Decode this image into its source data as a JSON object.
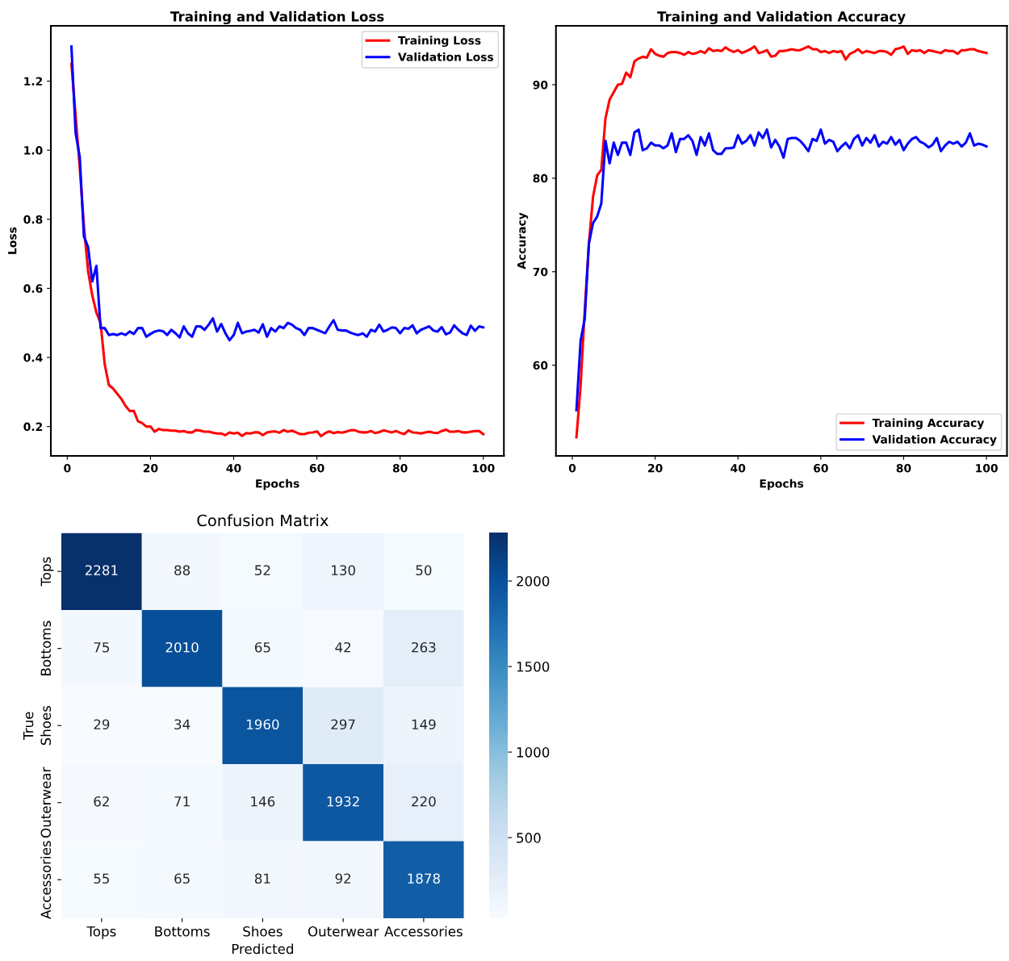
{
  "chart_data": [
    {
      "type": "line",
      "title": "Training and Validation Loss",
      "xlabel": "Epochs",
      "ylabel": "Loss",
      "xlim": [
        -3.95,
        104.95
      ],
      "ylim": [
        0.115,
        1.36
      ],
      "xticks": [
        0,
        20,
        40,
        60,
        80,
        100
      ],
      "yticks": [
        0.2,
        0.4,
        0.6,
        0.8,
        {
          "value": 1,
          "label": "1.0"
        },
        1.2
      ],
      "legend": "top right",
      "grid": false,
      "marker": "none",
      "line_style": "solid",
      "x": [
        1,
        2,
        3,
        4,
        5,
        6,
        7,
        8,
        9,
        10,
        11,
        12,
        13,
        14,
        15,
        16,
        17,
        18,
        19,
        20,
        21,
        22,
        23,
        24,
        25,
        26,
        27,
        28,
        29,
        30,
        31,
        32,
        33,
        34,
        35,
        36,
        37,
        38,
        39,
        40,
        41,
        42,
        43,
        44,
        45,
        46,
        47,
        48,
        49,
        50,
        51,
        52,
        53,
        54,
        55,
        56,
        57,
        58,
        59,
        60,
        61,
        62,
        63,
        64,
        65,
        66,
        67,
        68,
        69,
        70,
        71,
        72,
        73,
        74,
        75,
        76,
        77,
        78,
        79,
        80,
        81,
        82,
        83,
        84,
        85,
        86,
        87,
        88,
        89,
        90,
        91,
        92,
        93,
        94,
        95,
        96,
        97,
        98,
        99,
        100
      ],
      "series": [
        {
          "name": "Training Loss",
          "color": "#ff0000",
          "values": [
            1.25,
            1.1,
            0.95,
            0.78,
            0.65,
            0.58,
            0.53,
            0.5,
            0.38,
            0.32,
            0.31,
            0.295,
            0.28,
            0.26,
            0.245,
            0.245,
            0.215,
            0.21,
            0.2,
            0.2,
            0.185,
            0.193,
            0.19,
            0.19,
            0.188,
            0.188,
            0.185,
            0.187,
            0.183,
            0.183,
            0.19,
            0.188,
            0.185,
            0.185,
            0.182,
            0.18,
            0.18,
            0.175,
            0.183,
            0.18,
            0.182,
            0.173,
            0.181,
            0.18,
            0.183,
            0.183,
            0.175,
            0.183,
            0.185,
            0.186,
            0.182,
            0.19,
            0.185,
            0.188,
            0.183,
            0.178,
            0.178,
            0.182,
            0.183,
            0.186,
            0.172,
            0.181,
            0.186,
            0.181,
            0.184,
            0.182,
            0.185,
            0.189,
            0.19,
            0.185,
            0.183,
            0.183,
            0.187,
            0.181,
            0.184,
            0.189,
            0.186,
            0.183,
            0.187,
            0.182,
            0.178,
            0.189,
            0.183,
            0.182,
            0.18,
            0.183,
            0.185,
            0.182,
            0.181,
            0.187,
            0.191,
            0.185,
            0.185,
            0.187,
            0.183,
            0.183,
            0.185,
            0.187,
            0.187,
            0.178
          ]
        },
        {
          "name": "Validation Loss",
          "color": "#0000ff",
          "values": [
            1.3,
            1.05,
            0.98,
            0.75,
            0.72,
            0.62,
            0.665,
            0.485,
            0.485,
            0.465,
            0.468,
            0.465,
            0.47,
            0.465,
            0.475,
            0.468,
            0.485,
            0.485,
            0.46,
            0.468,
            0.475,
            0.478,
            0.476,
            0.465,
            0.48,
            0.47,
            0.458,
            0.49,
            0.47,
            0.46,
            0.49,
            0.49,
            0.48,
            0.495,
            0.513,
            0.475,
            0.497,
            0.47,
            0.45,
            0.465,
            0.5,
            0.47,
            0.475,
            0.477,
            0.48,
            0.472,
            0.496,
            0.46,
            0.485,
            0.475,
            0.49,
            0.485,
            0.5,
            0.495,
            0.485,
            0.48,
            0.465,
            0.485,
            0.485,
            0.48,
            0.475,
            0.47,
            0.49,
            0.508,
            0.48,
            0.478,
            0.478,
            0.472,
            0.468,
            0.465,
            0.47,
            0.46,
            0.48,
            0.475,
            0.495,
            0.475,
            0.48,
            0.487,
            0.485,
            0.47,
            0.485,
            0.483,
            0.493,
            0.47,
            0.48,
            0.485,
            0.49,
            0.478,
            0.475,
            0.488,
            0.467,
            0.472,
            0.493,
            0.48,
            0.47,
            0.465,
            0.492,
            0.477,
            0.49,
            0.487
          ]
        }
      ]
    },
    {
      "type": "line",
      "title": "Training and Validation Accuracy",
      "xlabel": "Epochs",
      "ylabel": "Accuracy",
      "xlim": [
        -3.95,
        104.95
      ],
      "ylim": [
        50.3,
        96.3
      ],
      "xticks": [
        0,
        20,
        40,
        60,
        80,
        100
      ],
      "yticks": [
        60,
        70,
        80,
        90
      ],
      "legend": "bottom right",
      "grid": false,
      "marker": "none",
      "line_style": "solid",
      "x": [
        1,
        2,
        3,
        4,
        5,
        6,
        7,
        8,
        9,
        10,
        11,
        12,
        13,
        14,
        15,
        16,
        17,
        18,
        19,
        20,
        21,
        22,
        23,
        24,
        25,
        26,
        27,
        28,
        29,
        30,
        31,
        32,
        33,
        34,
        35,
        36,
        37,
        38,
        39,
        40,
        41,
        42,
        43,
        44,
        45,
        46,
        47,
        48,
        49,
        50,
        51,
        52,
        53,
        54,
        55,
        56,
        57,
        58,
        59,
        60,
        61,
        62,
        63,
        64,
        65,
        66,
        67,
        68,
        69,
        70,
        71,
        72,
        73,
        74,
        75,
        76,
        77,
        78,
        79,
        80,
        81,
        82,
        83,
        84,
        85,
        86,
        87,
        88,
        89,
        90,
        91,
        92,
        93,
        94,
        95,
        96,
        97,
        98,
        99,
        100
      ],
      "series": [
        {
          "name": "Training Accuracy",
          "color": "#ff0000",
          "values": [
            52.3,
            57.8,
            65.9,
            73,
            78,
            80.3,
            80.9,
            86.4,
            88.4,
            89.2,
            90,
            90.1,
            91.3,
            90.8,
            92.5,
            92.8,
            93,
            92.9,
            93.8,
            93.3,
            93.1,
            93,
            93.4,
            93.5,
            93.5,
            93.4,
            93.2,
            93.5,
            93.3,
            93.4,
            93.6,
            93.4,
            93.9,
            93.6,
            93.7,
            93.6,
            94,
            93.7,
            93.5,
            93.7,
            93.4,
            93.6,
            93.8,
            94.1,
            93.4,
            93.5,
            93.7,
            93,
            93.1,
            93.6,
            93.6,
            93.7,
            93.8,
            93.7,
            93.7,
            93.9,
            94.1,
            93.8,
            93.8,
            93.5,
            93.6,
            93.4,
            93.6,
            93.5,
            93.6,
            92.7,
            93.3,
            93.5,
            93.8,
            93.4,
            93.6,
            93.5,
            93.4,
            93.6,
            93.6,
            93.5,
            93.2,
            93.8,
            93.9,
            94.1,
            93.3,
            93.7,
            93.6,
            93.7,
            93.4,
            93.7,
            93.6,
            93.5,
            93.4,
            93.7,
            93.6,
            93.6,
            93.3,
            93.7,
            93.7,
            93.8,
            93.8,
            93.6,
            93.5,
            93.4
          ]
        },
        {
          "name": "Validation Accuracy",
          "color": "#0000ff",
          "values": [
            55.2,
            62.6,
            65,
            73,
            75.2,
            75.9,
            77.3,
            84,
            81.6,
            83.8,
            82.5,
            83.8,
            83.8,
            82.5,
            84.9,
            85.2,
            83,
            83.2,
            83.8,
            83.5,
            83.5,
            83.2,
            83.5,
            84.8,
            82.8,
            84.2,
            84.2,
            84.6,
            84,
            82.5,
            84.4,
            83.5,
            84.8,
            83,
            82.6,
            82.6,
            83.2,
            83.2,
            83.3,
            84.6,
            83.7,
            84,
            84.6,
            83.5,
            84.9,
            84.3,
            85.2,
            83.3,
            84.1,
            83.4,
            82.2,
            84.2,
            84.3,
            84.3,
            84,
            83.5,
            82.9,
            84.2,
            84,
            85.2,
            83.7,
            84.1,
            83.9,
            82.9,
            83.4,
            83.8,
            83.2,
            84.2,
            84.6,
            83.5,
            84.3,
            83.8,
            84.6,
            83.4,
            83.9,
            83.7,
            84.4,
            83.6,
            84.1,
            83,
            83.7,
            84.2,
            84.4,
            83.9,
            83.7,
            83.3,
            83.6,
            84.3,
            82.9,
            83.5,
            83.9,
            83.7,
            83.9,
            83.4,
            83.8,
            84.8,
            83.5,
            83.7,
            83.6,
            83.4
          ]
        }
      ]
    },
    {
      "type": "heatmap",
      "title": "Confusion Matrix",
      "xlabel": "Predicted",
      "ylabel": "True",
      "categories": [
        "Tops",
        "Bottoms",
        "Shoes",
        "Outerwear",
        "Accessories"
      ],
      "y_categories": [
        "Tops",
        "Bottoms",
        "Shoes",
        "Outerwear",
        "Accessories"
      ],
      "cells": [
        [
          2281,
          88,
          52,
          130,
          50
        ],
        [
          75,
          2010,
          65,
          42,
          263
        ],
        [
          29,
          34,
          1960,
          297,
          149
        ],
        [
          62,
          71,
          146,
          1932,
          220
        ],
        [
          55,
          65,
          81,
          92,
          1878
        ]
      ],
      "clim": [
        29,
        2281
      ],
      "cticks": [
        500,
        1000,
        1500,
        2000
      ],
      "data_labels": true
    }
  ]
}
